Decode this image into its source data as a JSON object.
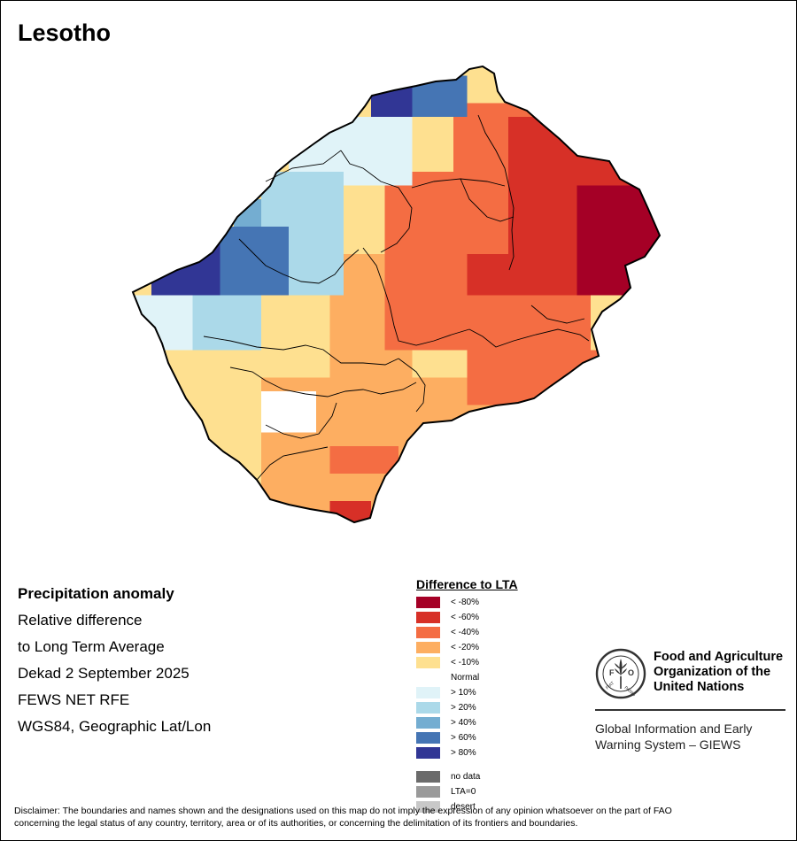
{
  "title": "Lesotho",
  "info": {
    "line1": "Precipitation anomaly",
    "line2": "Relative difference",
    "line3": "to Long Term Average",
    "line4": "Dekad 2 September 2025",
    "line5": "FEWS NET RFE",
    "line6": "WGS84, Geographic Lat/Lon"
  },
  "legend": {
    "title": "Difference to LTA",
    "classes": [
      {
        "label": "< -80%",
        "color": "#a50026"
      },
      {
        "label": "< -60%",
        "color": "#d73027"
      },
      {
        "label": "< -40%",
        "color": "#f46d43"
      },
      {
        "label": "< -20%",
        "color": "#fdae61"
      },
      {
        "label": "< -10%",
        "color": "#fee090"
      },
      {
        "label": "Normal",
        "color": "#ffffff"
      },
      {
        "label": "> 10%",
        "color": "#e0f3f8"
      },
      {
        "label": "> 20%",
        "color": "#abd9e9"
      },
      {
        "label": "> 40%",
        "color": "#74add1"
      },
      {
        "label": "> 60%",
        "color": "#4575b4"
      },
      {
        "label": "> 80%",
        "color": "#313695"
      }
    ],
    "extra": [
      {
        "label": "no data",
        "color": "#6b6b6b"
      },
      {
        "label": "LTA=0",
        "color": "#9a9a9a"
      },
      {
        "label": "desert",
        "color": "#c8c8c8"
      }
    ]
  },
  "org": {
    "name_line1": "Food and Agriculture",
    "name_line2": "Organization of the",
    "name_line3": "United Nations",
    "giews_line1": "Global Information and Early",
    "giews_line2": "Warning System – GIEWS",
    "logo_text": "FAO",
    "logo_motto": "FIAT PANIS"
  },
  "disclaimer": {
    "line1": "Disclaimer: The boundaries and names shown and the designations used on this map do not imply the expression of any opinion whatsoever on the part of FAO",
    "line2": "concerning the legal status of any country, territory, area or of its authorities, or concerning the delimitation of its frontiers and boundaries."
  }
}
